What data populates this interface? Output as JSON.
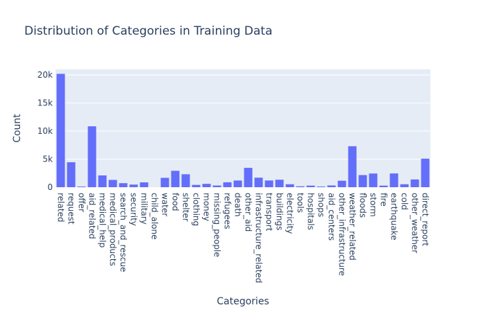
{
  "chart_data": {
    "type": "bar",
    "title": "Distribution of Categories in Training Data",
    "xlabel": "Categories",
    "ylabel": "Count",
    "ylim": [
      0,
      21000
    ],
    "yticks": [
      0,
      5000,
      10000,
      15000,
      20000
    ],
    "ytick_labels": [
      "0",
      "5k",
      "10k",
      "15k",
      "20k"
    ],
    "bar_color": "#636efa",
    "plot_bg": "#e5ecf6",
    "grid": true,
    "categories": [
      "related",
      "request",
      "offer",
      "aid_related",
      "medical_help",
      "medical_products",
      "search_and_rescue",
      "security",
      "military",
      "child_alone",
      "water",
      "food",
      "shelter",
      "clothing",
      "money",
      "missing_people",
      "refugees",
      "death",
      "other_aid",
      "infrastructure_related",
      "transport",
      "buildings",
      "electricity",
      "tools",
      "hospitals",
      "shops",
      "aid_centers",
      "other_infrastructure",
      "weather_related",
      "floods",
      "storm",
      "fire",
      "earthquake",
      "cold",
      "other_weather",
      "direct_report"
    ],
    "values": [
      20200,
      4450,
      120,
      10850,
      2100,
      1300,
      720,
      470,
      860,
      0,
      1670,
      2920,
      2310,
      410,
      600,
      300,
      880,
      1190,
      3450,
      1700,
      1200,
      1330,
      530,
      160,
      280,
      120,
      310,
      1150,
      7300,
      2160,
      2440,
      280,
      2450,
      530,
      1380,
      5080
    ]
  }
}
